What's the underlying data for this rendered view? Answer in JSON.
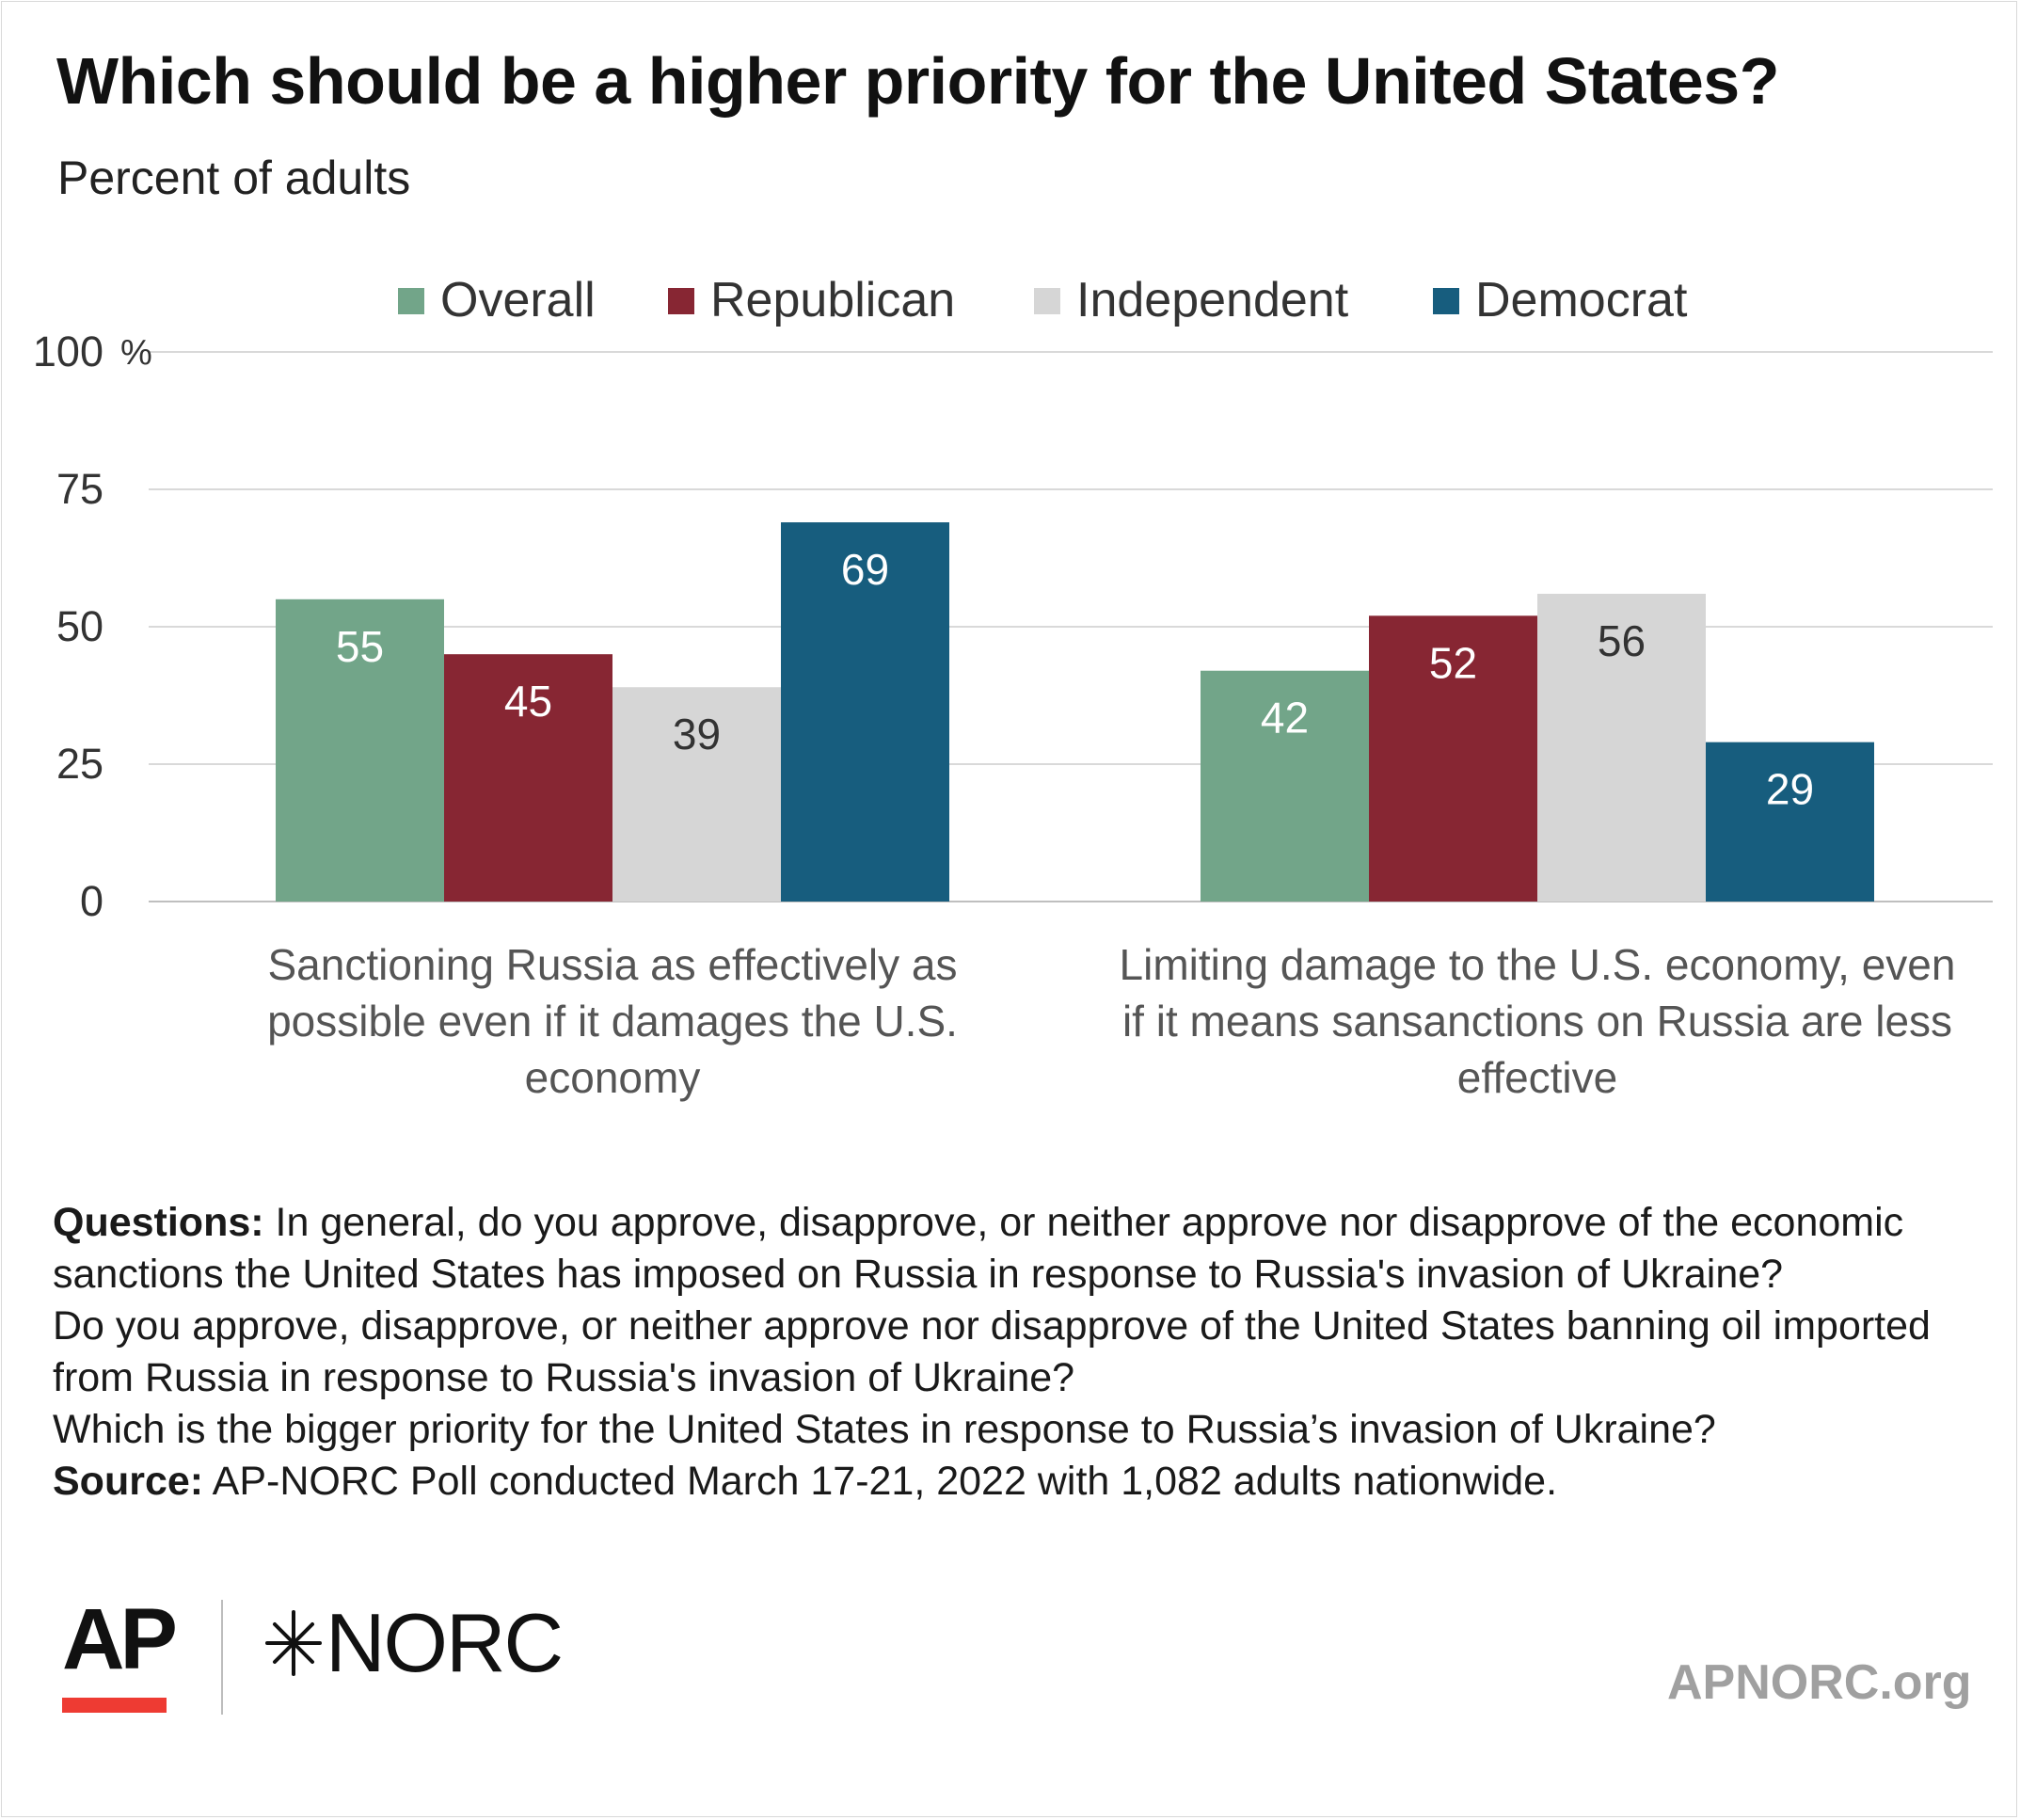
{
  "title": "Which should be a higher priority for the United States?",
  "subtitle": "Percent of adults",
  "chart_data": {
    "type": "bar",
    "title": "Which should be a higher priority for the United States?",
    "subtitle": "Percent of adults",
    "unit_label": "%",
    "ylim": [
      0,
      100
    ],
    "yticks": [
      0,
      25,
      50,
      75,
      100
    ],
    "grid": true,
    "legend_position": "top",
    "categories": [
      [
        "Sanctioning Russia as effectively as",
        "possible even if it damages the U.S.",
        "economy"
      ],
      [
        "Limiting damage to the U.S. economy, even",
        "if it means sansanctions on Russia are less",
        "effective"
      ]
    ],
    "series": [
      {
        "name": "Overall",
        "color": "#72a589",
        "label_color": "#ffffff",
        "values": [
          55,
          42
        ]
      },
      {
        "name": "Republican",
        "color": "#872633",
        "label_color": "#ffffff",
        "values": [
          45,
          52
        ]
      },
      {
        "name": "Independent",
        "color": "#d6d6d6",
        "label_color": "#333333",
        "values": [
          39,
          56
        ]
      },
      {
        "name": "Democrat",
        "color": "#175d7e",
        "label_color": "#ffffff",
        "values": [
          69,
          29
        ]
      }
    ]
  },
  "notes": {
    "questions_label": "Questions:",
    "questions_text": " In general, do you approve, disapprove, or neither approve nor disapprove of the economic sanctions the United States has imposed on Russia in response to Russia's invasion of Ukraine?",
    "question2": "Do you approve, disapprove, or neither approve nor disapprove of the United States banning oil imported from Russia in response to Russia's invasion of Ukraine?",
    "question3": "Which is the bigger priority for the United States in response to Russia’s invasion of Ukraine?",
    "source_label": "Source:",
    "source_text": " AP-NORC Poll conducted March 17-21, 2022 with 1,082 adults nationwide."
  },
  "branding": {
    "ap_logo": "AP",
    "norc_logo": "NORC",
    "norc_icon": "star-burst-icon",
    "site": "APNORC.org",
    "ap_accent": "#ee3b33"
  }
}
